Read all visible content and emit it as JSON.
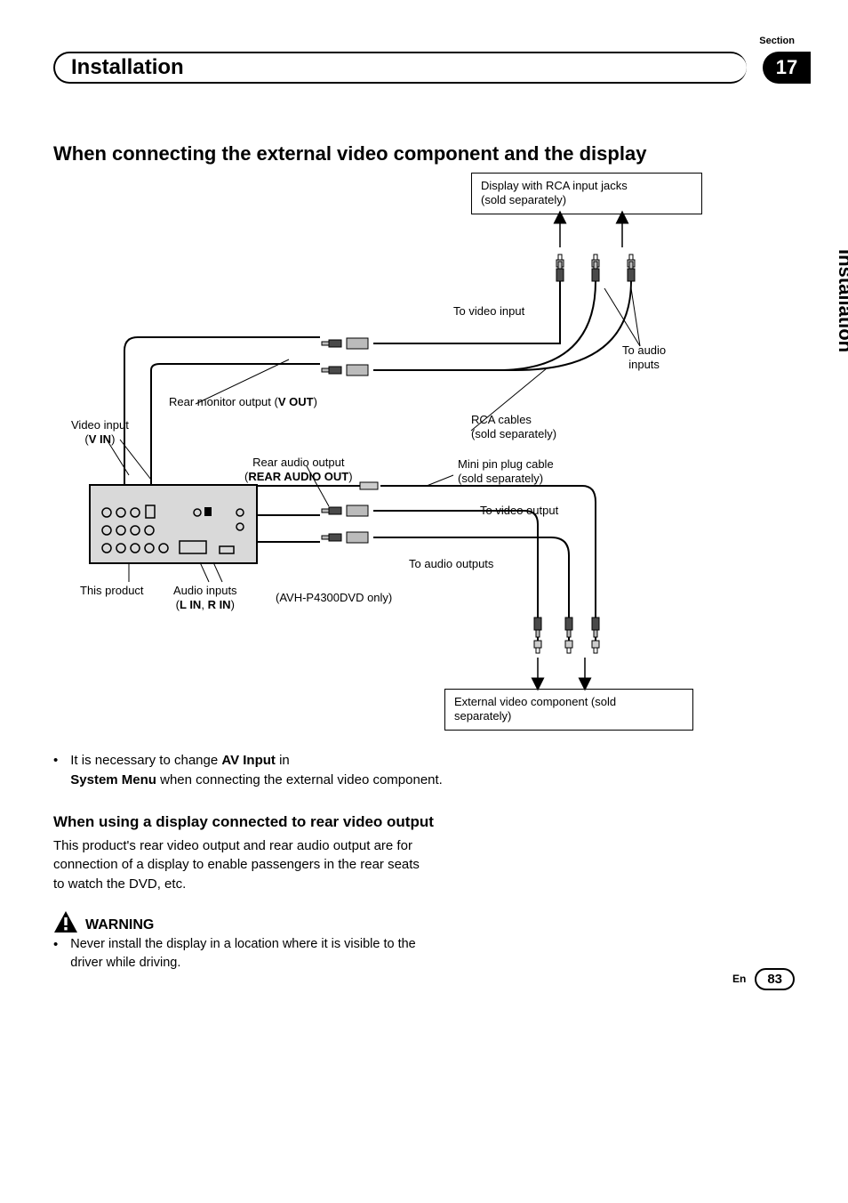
{
  "header": {
    "section_label": "Section",
    "section_number": "17",
    "title": "Installation",
    "side_tab": "Installation"
  },
  "h1": "When connecting the external video component and the display",
  "diagram": {
    "boxes": {
      "display_box": "Display with RCA input jacks\n(sold separately)",
      "external_box": "External video component (sold\nseparately)"
    },
    "labels": {
      "to_video_input": "To video input",
      "to_audio_inputs": "To audio\ninputs",
      "rear_monitor_prefix": "Rear monitor output (",
      "rear_monitor_bold": "V OUT",
      "rear_monitor_suffix": ")",
      "video_input_prefix": "Video input",
      "video_input_bold": "(V IN)",
      "rca_cables": "RCA cables\n(sold separately)",
      "rear_audio_prefix": "Rear audio output",
      "rear_audio_bold": "(REAR AUDIO OUT)",
      "minipin": "Mini pin plug cable\n(sold separately)",
      "to_video_output": "To video output",
      "to_audio_outputs": "To audio outputs",
      "audio_inputs_prefix": "Audio inputs",
      "audio_inputs_bold": "(L IN, R IN)",
      "this_product": "This product",
      "avh_note": "(AVH-P4300DVD only)"
    }
  },
  "bullet1": {
    "p1": "It is necessary to change ",
    "b1": "AV Input",
    "p2": " in",
    "b2": "System Menu",
    "p3": " when connecting the external video component."
  },
  "sub_heading": "When using a display connected to rear video output",
  "body_para": "This product's rear video output and rear audio output are for connection of a display to enable passengers in the rear seats to watch the DVD, etc.",
  "warning_label": "WARNING",
  "warning_bullet": "Never install the display in a location where it is visible to the driver while driving.",
  "footer": {
    "lang": "En",
    "page": "83"
  },
  "colors": {
    "black": "#000000",
    "grey_fill": "#d9d9d9",
    "side_thumb": "#999999"
  }
}
